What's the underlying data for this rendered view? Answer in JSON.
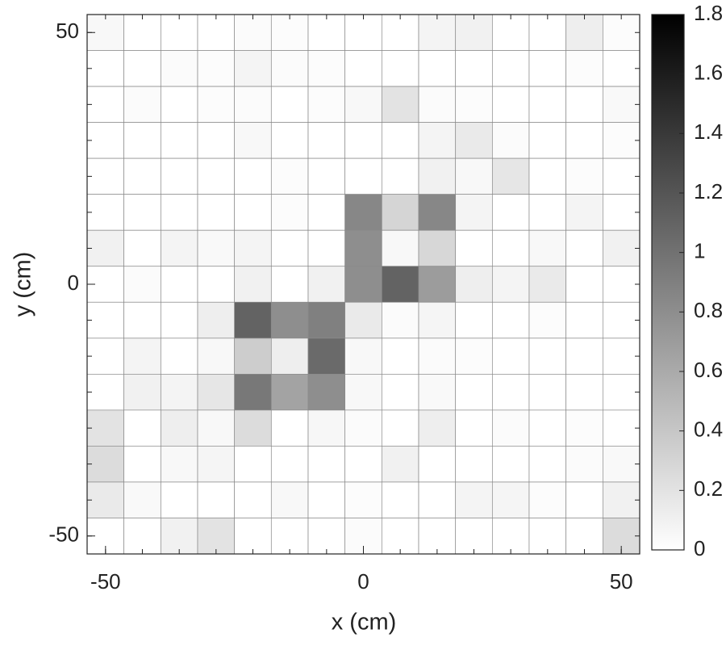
{
  "chart_data": {
    "type": "heatmap",
    "x_label": "x (cm)",
    "y_label": "y (cm)",
    "x": [
      -50,
      -42.86,
      -35.71,
      -28.57,
      -21.43,
      -14.29,
      -7.14,
      0,
      7.14,
      14.29,
      21.43,
      28.57,
      35.71,
      42.86,
      50
    ],
    "y": [
      50,
      42.86,
      35.71,
      28.57,
      21.43,
      14.29,
      7.14,
      0,
      -7.14,
      -14.29,
      -21.43,
      -28.57,
      -35.71,
      -42.86,
      -50
    ],
    "z": [
      [
        0.05,
        0,
        0,
        0,
        0.03,
        0.02,
        0,
        0,
        0,
        0.08,
        0.1,
        0,
        0,
        0.12,
        0.02
      ],
      [
        0,
        0,
        0.03,
        0.02,
        0.08,
        0.03,
        0.02,
        0,
        0,
        0,
        0,
        0,
        0,
        0.02,
        0
      ],
      [
        0,
        0.03,
        0,
        0.02,
        0.03,
        0,
        0.02,
        0.05,
        0.2,
        0.03,
        0.02,
        0,
        0,
        0,
        0.04
      ],
      [
        0,
        0,
        0,
        0,
        0.05,
        0,
        0,
        0,
        0,
        0.08,
        0.15,
        0.03,
        0,
        0,
        0.02
      ],
      [
        0,
        0,
        0,
        0,
        0,
        0.02,
        0,
        0,
        0,
        0.1,
        0.05,
        0.18,
        0,
        0.02,
        0
      ],
      [
        0,
        0,
        0,
        0,
        0,
        0.02,
        0,
        0.85,
        0.3,
        0.85,
        0.08,
        0,
        0,
        0.08,
        0
      ],
      [
        0.1,
        0,
        0.08,
        0.04,
        0.08,
        0,
        0,
        0.8,
        0.05,
        0.28,
        0,
        0,
        0.05,
        0,
        0.1
      ],
      [
        0,
        0.03,
        0,
        0,
        0.1,
        0,
        0.1,
        0.8,
        1.1,
        0.7,
        0.12,
        0.08,
        0.15,
        0,
        0
      ],
      [
        0,
        0,
        0,
        0.12,
        1.1,
        0.8,
        0.9,
        0.15,
        0.03,
        0.07,
        0,
        0,
        0.02,
        0,
        0
      ],
      [
        0,
        0.08,
        0,
        0.05,
        0.35,
        0.12,
        1.05,
        0.05,
        0,
        0.03,
        0.02,
        0,
        0,
        0,
        0
      ],
      [
        0,
        0.1,
        0.08,
        0.18,
        0.95,
        0.65,
        0.8,
        0.05,
        0,
        0.04,
        0,
        0,
        0,
        0,
        0
      ],
      [
        0.2,
        0,
        0.12,
        0.05,
        0.25,
        0,
        0.06,
        0.03,
        0,
        0.12,
        0,
        0.03,
        0,
        0.02,
        0
      ],
      [
        0.25,
        0,
        0.05,
        0.07,
        0,
        0,
        0,
        0,
        0.1,
        0,
        0,
        0,
        0,
        0.03,
        0.04
      ],
      [
        0.15,
        0.04,
        0,
        0,
        0,
        0.05,
        0,
        0.02,
        0,
        0,
        0.08,
        0.07,
        0.02,
        0,
        0.1
      ],
      [
        0,
        0,
        0.1,
        0.2,
        0,
        0,
        0,
        0.03,
        0,
        0,
        0,
        0,
        0,
        0,
        0.25
      ]
    ],
    "xlim": [
      -53.57,
      53.57
    ],
    "ylim": [
      -53.57,
      53.57
    ],
    "xticks": [
      -50,
      0,
      50
    ],
    "yticks": [
      -50,
      0,
      50
    ],
    "clim": [
      0,
      1.8
    ],
    "cticks": [
      0,
      0.2,
      0.4,
      0.6,
      0.8,
      1,
      1.2,
      1.4,
      1.6,
      1.8
    ],
    "colormap": [
      "#ffffff",
      "#000000"
    ]
  }
}
